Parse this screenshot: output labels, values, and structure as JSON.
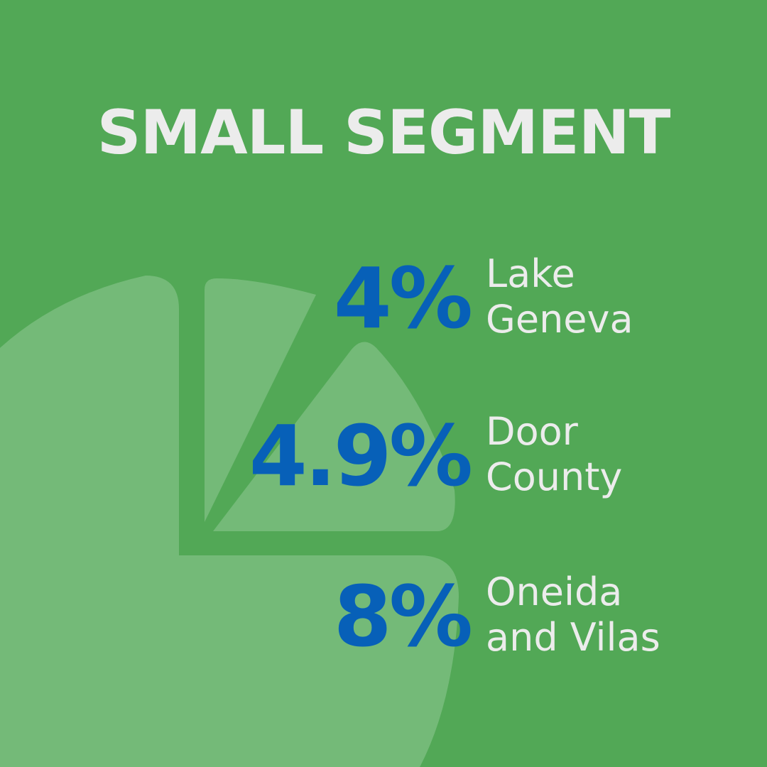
{
  "title": "SMALL SEGMENT",
  "colors": {
    "background": "#52A856",
    "pie_tint": "#74BA78",
    "title_text": "#ECECEC",
    "percent_text": "#0760B8",
    "label_text": "#ECECEC"
  },
  "background_icon": "pie-chart-icon",
  "stats": [
    {
      "percent": "4%",
      "label_line1": "Lake",
      "label_line2": "Geneva"
    },
    {
      "percent": "4.9%",
      "label_line1": "Door",
      "label_line2": "County"
    },
    {
      "percent": "8%",
      "label_line1": "Oneida",
      "label_line2": "and Vilas"
    }
  ]
}
